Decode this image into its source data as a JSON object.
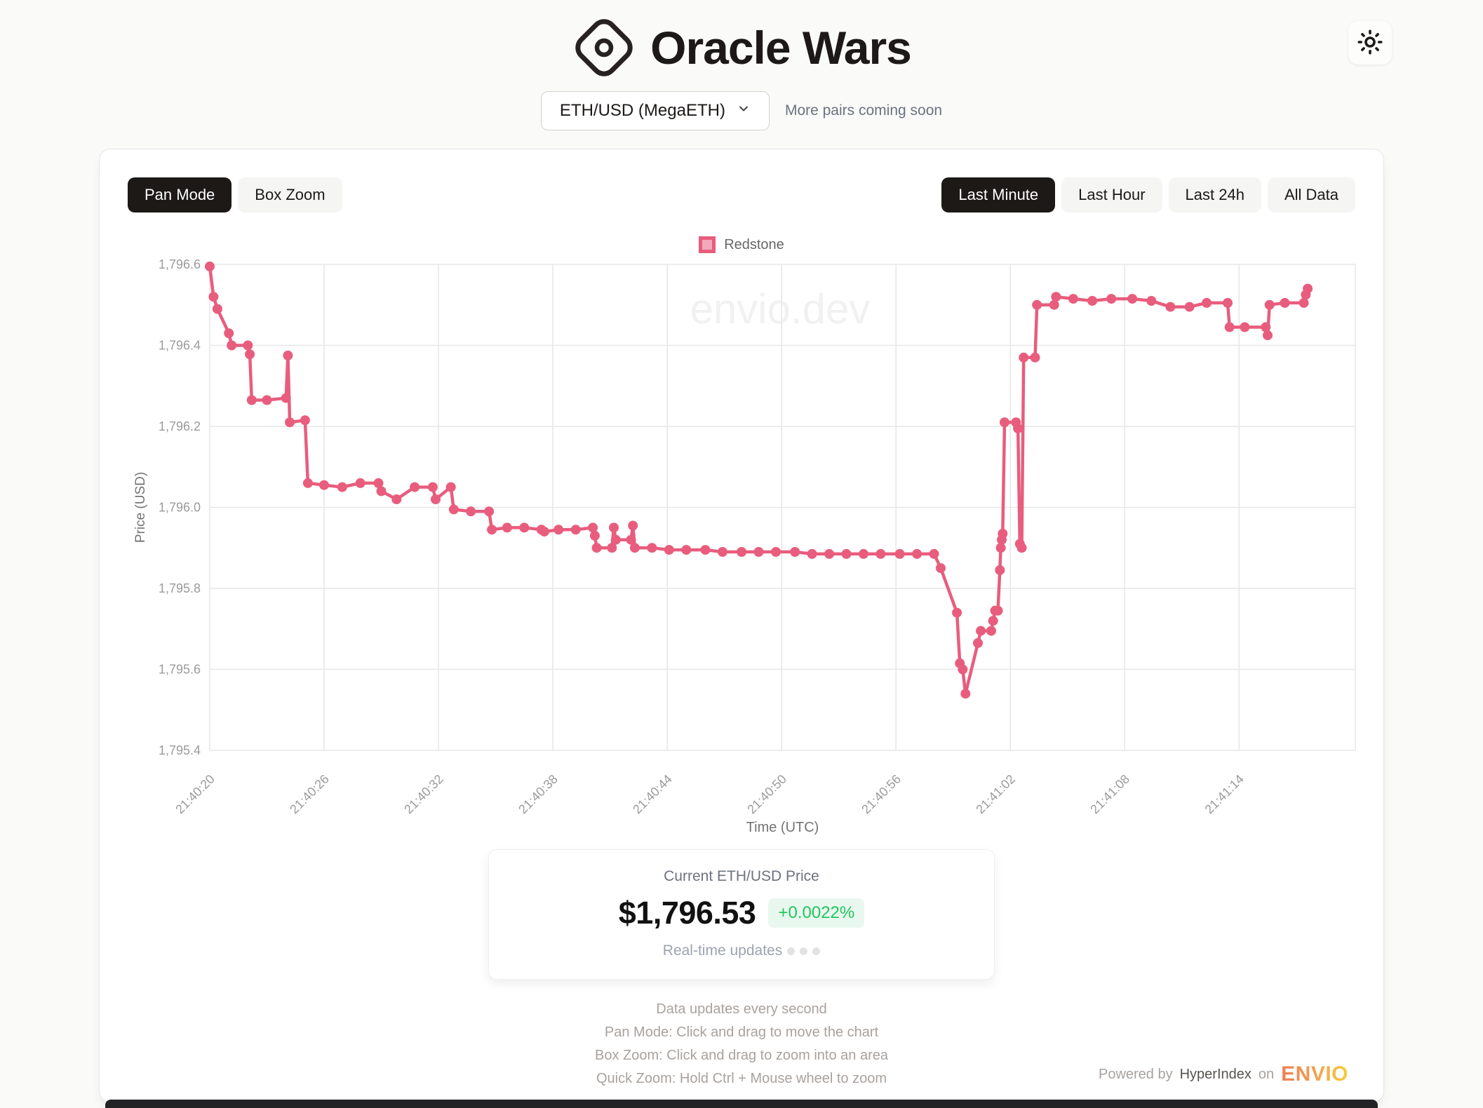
{
  "header": {
    "title": "Oracle Wars",
    "logo_icon": "diamond-with-circle",
    "theme_toggle_icon": "sun"
  },
  "pair_selector": {
    "selected": "ETH/USD (MegaETH)",
    "chevron_icon": "chevron-down",
    "note": "More pairs coming soon"
  },
  "toolbar": {
    "modes": [
      {
        "label": "Pan Mode",
        "active": true
      },
      {
        "label": "Box Zoom",
        "active": false
      }
    ],
    "ranges": [
      {
        "label": "Last Minute",
        "active": true
      },
      {
        "label": "Last Hour",
        "active": false
      },
      {
        "label": "Last 24h",
        "active": false
      },
      {
        "label": "All Data",
        "active": false
      }
    ]
  },
  "chart_data": {
    "type": "line",
    "watermark": "envio.dev",
    "xlabel": "Time (UTC)",
    "ylabel": "Price (USD)",
    "legend_position": "top",
    "grid": true,
    "ylim": [
      1795.4,
      1796.6
    ],
    "y_ticks": [
      {
        "label": "1,796.6",
        "value": 1796.6
      },
      {
        "label": "1,796.4",
        "value": 1796.4
      },
      {
        "label": "1,796.2",
        "value": 1796.2
      },
      {
        "label": "1,796.0",
        "value": 1796.0
      },
      {
        "label": "1,795.8",
        "value": 1795.8
      },
      {
        "label": "1,795.6",
        "value": 1795.6
      },
      {
        "label": "1,795.4",
        "value": 1795.4
      }
    ],
    "x_ticks": [
      "21:40:20",
      "21:40:26",
      "21:40:32",
      "21:40:38",
      "21:40:44",
      "21:40:50",
      "21:40:56",
      "21:41:02",
      "21:41:08",
      "21:41:14"
    ],
    "x_tick_interval_seconds": 6,
    "x_domain_seconds": [
      0,
      60.1
    ],
    "legend": [
      {
        "name": "Redstone",
        "color": "#e85d7d",
        "fill": "#f2a9bc"
      }
    ],
    "series": [
      {
        "name": "Redstone",
        "color": "#e85d7d",
        "points": [
          [
            0,
            1796.595
          ],
          [
            0.2,
            1796.52
          ],
          [
            0.4,
            1796.49
          ],
          [
            1.0,
            1796.43
          ],
          [
            1.15,
            1796.4
          ],
          [
            2.0,
            1796.4
          ],
          [
            2.1,
            1796.378
          ],
          [
            2.2,
            1796.265
          ],
          [
            3.0,
            1796.265
          ],
          [
            4.0,
            1796.27
          ],
          [
            4.1,
            1796.375
          ],
          [
            4.2,
            1796.21
          ],
          [
            5.0,
            1796.215
          ],
          [
            5.15,
            1796.06
          ],
          [
            6.0,
            1796.055
          ],
          [
            6.95,
            1796.05
          ],
          [
            7.9,
            1796.06
          ],
          [
            8.85,
            1796.06
          ],
          [
            9.0,
            1796.04
          ],
          [
            9.8,
            1796.02
          ],
          [
            10.75,
            1796.05
          ],
          [
            11.7,
            1796.05
          ],
          [
            11.85,
            1796.02
          ],
          [
            12.65,
            1796.05
          ],
          [
            12.8,
            1795.995
          ],
          [
            13.7,
            1795.99
          ],
          [
            14.65,
            1795.99
          ],
          [
            14.8,
            1795.945
          ],
          [
            15.6,
            1795.95
          ],
          [
            16.5,
            1795.95
          ],
          [
            17.4,
            1795.945
          ],
          [
            17.55,
            1795.94
          ],
          [
            18.3,
            1795.945
          ],
          [
            19.2,
            1795.945
          ],
          [
            20.1,
            1795.95
          ],
          [
            20.2,
            1795.93
          ],
          [
            20.3,
            1795.9
          ],
          [
            21.1,
            1795.9
          ],
          [
            21.2,
            1795.95
          ],
          [
            21.3,
            1795.92
          ],
          [
            22.1,
            1795.92
          ],
          [
            22.2,
            1795.955
          ],
          [
            22.3,
            1795.9
          ],
          [
            23.2,
            1795.9
          ],
          [
            24.1,
            1795.895
          ],
          [
            25.0,
            1795.895
          ],
          [
            26.0,
            1795.895
          ],
          [
            26.9,
            1795.89
          ],
          [
            27.9,
            1795.89
          ],
          [
            28.8,
            1795.89
          ],
          [
            29.7,
            1795.89
          ],
          [
            30.7,
            1795.89
          ],
          [
            31.6,
            1795.885
          ],
          [
            32.5,
            1795.885
          ],
          [
            33.4,
            1795.885
          ],
          [
            34.3,
            1795.885
          ],
          [
            35.2,
            1795.885
          ],
          [
            36.2,
            1795.885
          ],
          [
            37.1,
            1795.885
          ],
          [
            38.0,
            1795.885
          ],
          [
            38.35,
            1795.85
          ],
          [
            39.2,
            1795.74
          ],
          [
            39.35,
            1795.615
          ],
          [
            39.5,
            1795.6
          ],
          [
            39.65,
            1795.54
          ],
          [
            40.3,
            1795.665
          ],
          [
            40.45,
            1795.695
          ],
          [
            41.0,
            1795.695
          ],
          [
            41.1,
            1795.72
          ],
          [
            41.2,
            1795.745
          ],
          [
            41.35,
            1795.745
          ],
          [
            41.45,
            1795.845
          ],
          [
            41.5,
            1795.9
          ],
          [
            41.55,
            1795.92
          ],
          [
            41.6,
            1795.935
          ],
          [
            41.7,
            1796.21
          ],
          [
            42.3,
            1796.21
          ],
          [
            42.4,
            1796.195
          ],
          [
            42.5,
            1795.91
          ],
          [
            42.6,
            1795.9
          ],
          [
            42.7,
            1796.37
          ],
          [
            43.3,
            1796.37
          ],
          [
            43.4,
            1796.5
          ],
          [
            44.3,
            1796.5
          ],
          [
            44.4,
            1796.52
          ],
          [
            45.3,
            1796.515
          ],
          [
            46.3,
            1796.51
          ],
          [
            47.3,
            1796.515
          ],
          [
            48.4,
            1796.515
          ],
          [
            49.4,
            1796.51
          ],
          [
            50.4,
            1796.495
          ],
          [
            51.4,
            1796.495
          ],
          [
            52.3,
            1796.505
          ],
          [
            53.4,
            1796.505
          ],
          [
            53.5,
            1796.445
          ],
          [
            54.3,
            1796.445
          ],
          [
            55.4,
            1796.445
          ],
          [
            55.5,
            1796.425
          ],
          [
            55.6,
            1796.5
          ],
          [
            56.4,
            1796.505
          ],
          [
            57.4,
            1796.505
          ],
          [
            57.5,
            1796.525
          ],
          [
            57.6,
            1796.54
          ]
        ]
      }
    ]
  },
  "price_card": {
    "title": "Current ETH/USD Price",
    "price": "$1,796.53",
    "change": "+0.0022%",
    "change_color": "#22c55e",
    "subtitle": "Real-time updates"
  },
  "footer": {
    "lines": [
      "Data updates every second",
      "Pan Mode: Click and drag to move the chart",
      "Box Zoom: Click and drag to zoom into an area",
      "Quick Zoom: Hold Ctrl + Mouse wheel to zoom"
    ],
    "powered_by": {
      "prefix": "Powered by",
      "link": "HyperIndex",
      "middle": "on",
      "brand": "ENVIO"
    }
  }
}
